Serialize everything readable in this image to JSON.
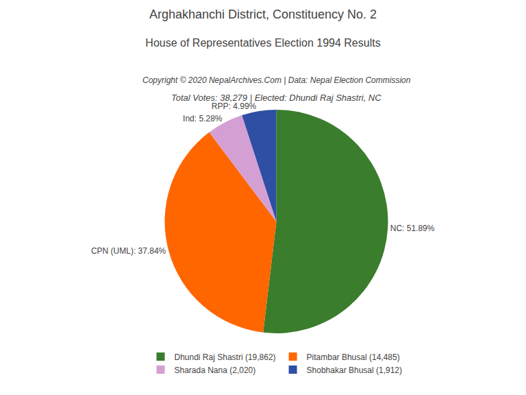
{
  "chart_data": {
    "type": "pie",
    "title": "Arghakhanchi District, Constituency No. 2",
    "subtitle": "House of Representatives Election 1994 Results",
    "annotations": [
      "Copyright © 2020 NepalArchives.Com | Data: Nepal Election Commission",
      "Total Votes: 38,279 | Elected: Dhundi Raj Shastri, NC"
    ],
    "categories": [
      "NC",
      "CPN (UML)",
      "Ind",
      "RPP"
    ],
    "values": [
      51.89,
      37.84,
      5.28,
      4.99
    ],
    "value_labels": [
      "NC: 51.89%",
      "CPN (UML): 37.84%",
      "Ind: 5.28%",
      "RPP: 4.99%"
    ],
    "data_labels": true,
    "colors": [
      "#3a7d2c",
      "#ff6600",
      "#d4a0d4",
      "#2e4fa3"
    ],
    "legend_labels": [
      "Dhundi Raj Shastri (19,862)",
      "Pitambar Bhusal (14,485)",
      "Sharada Nana (2,020)",
      "Shobhakar Bhusal (1,912)"
    ],
    "legend": "bottom"
  }
}
